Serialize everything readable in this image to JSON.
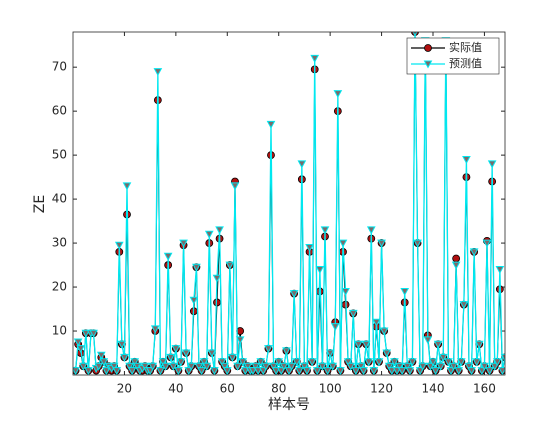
{
  "chart_data": {
    "type": "line",
    "xlabel": "样本号",
    "ylabel": "ZE",
    "x": [
      1,
      2,
      3,
      4,
      5,
      6,
      7,
      8,
      9,
      10,
      11,
      12,
      13,
      14,
      15,
      16,
      17,
      18,
      19,
      20,
      21,
      22,
      23,
      24,
      25,
      26,
      27,
      28,
      29,
      30,
      31,
      32,
      33,
      34,
      35,
      36,
      37,
      38,
      39,
      40,
      41,
      42,
      43,
      44,
      45,
      46,
      47,
      48,
      49,
      50,
      51,
      52,
      53,
      54,
      55,
      56,
      57,
      58,
      59,
      60,
      61,
      62,
      63,
      64,
      65,
      66,
      67,
      68,
      69,
      70,
      71,
      72,
      73,
      74,
      75,
      76,
      77,
      78,
      79,
      80,
      81,
      82,
      83,
      84,
      85,
      86,
      87,
      88,
      89,
      90,
      91,
      92,
      93,
      94,
      95,
      96,
      97,
      98,
      99,
      100,
      101,
      102,
      103,
      104,
      105,
      106,
      107,
      108,
      109,
      110,
      111,
      112,
      113,
      114,
      115,
      116,
      117,
      118,
      119,
      120,
      121,
      122,
      123,
      124,
      125,
      126,
      127,
      128,
      129,
      130,
      131,
      132,
      133,
      134,
      135,
      136,
      137,
      138,
      139,
      140,
      141,
      142,
      143,
      144,
      145,
      146,
      147,
      148,
      149,
      150,
      151,
      152,
      153,
      154,
      155,
      156,
      157,
      158,
      159,
      160,
      161,
      162,
      163,
      164,
      165,
      166,
      167,
      168
    ],
    "series": [
      {
        "name": "实际值",
        "color": "#000000",
        "marker": "circle",
        "marker_color": "#b01010",
        "values": [
          1,
          7,
          5,
          2,
          9.5,
          1,
          9.5,
          9.5,
          1,
          2,
          4,
          3,
          1,
          2,
          1,
          2,
          1,
          28,
          7,
          4,
          36.5,
          2,
          1,
          3,
          2,
          1,
          1,
          2,
          1,
          1,
          2,
          10,
          62.5,
          1,
          3,
          2,
          25,
          4,
          2,
          6,
          1,
          3,
          29.5,
          5,
          1,
          2,
          14.5,
          24.5,
          2,
          1,
          3,
          2,
          30,
          5,
          1,
          16.5,
          31,
          3,
          2,
          1,
          25,
          4,
          44,
          2,
          10,
          3,
          1,
          2,
          1,
          1,
          2,
          1,
          3,
          1,
          2,
          6,
          50,
          2,
          1,
          3,
          1,
          2,
          5.5,
          1,
          2,
          18.5,
          3,
          1,
          44.5,
          2,
          1,
          28,
          3,
          69.5,
          1,
          19,
          2,
          31.5,
          1,
          5,
          2,
          12,
          60,
          1,
          28,
          16,
          3,
          2,
          14,
          1,
          7,
          2,
          1,
          7,
          3,
          31,
          1,
          11,
          3,
          30,
          10,
          5,
          2,
          1,
          3,
          1,
          2,
          1,
          16.5,
          2,
          1,
          3,
          78,
          30,
          1,
          2,
          75,
          9,
          2,
          3,
          1,
          7,
          2,
          4,
          75,
          3,
          1,
          2,
          26.5,
          1,
          3,
          16,
          45,
          2,
          1,
          28,
          3,
          7,
          1,
          2,
          30.5,
          1,
          44,
          2,
          3,
          19.5,
          1,
          4
        ]
      },
      {
        "name": "预测值",
        "color": "#00e8f0",
        "marker": "triangle-down",
        "marker_color": "#7a6a6a",
        "values": [
          1,
          7.5,
          6,
          2,
          9.5,
          1,
          9.5,
          9.5,
          1.5,
          2,
          4.5,
          3,
          1,
          2,
          1.5,
          2,
          1,
          29.5,
          7,
          4,
          43,
          2,
          1,
          3,
          2,
          1,
          1.5,
          2,
          1,
          1,
          2,
          10.5,
          69,
          1,
          3,
          2,
          27,
          4,
          2,
          6,
          1,
          3,
          30,
          5,
          1,
          2,
          17,
          24.5,
          2,
          1,
          3,
          2,
          32,
          5,
          1,
          22,
          33,
          3,
          2,
          1,
          25,
          4,
          43,
          2,
          8,
          3,
          1,
          2,
          1,
          1,
          2,
          1,
          3,
          1,
          2,
          6,
          57,
          2,
          1,
          3,
          1,
          2,
          5.5,
          1,
          2,
          18.5,
          3,
          1,
          48,
          2,
          1,
          29,
          3,
          72,
          1,
          24,
          2,
          33,
          1,
          5,
          2,
          11,
          64,
          1,
          30,
          19,
          3,
          2,
          14,
          1,
          7,
          2,
          1,
          7,
          3,
          33,
          1,
          12,
          3,
          30,
          10,
          5,
          2,
          1,
          3,
          1,
          2,
          1,
          19,
          2,
          1,
          3,
          78,
          30,
          1,
          2,
          76,
          8,
          2,
          3,
          1,
          7,
          2,
          4,
          76,
          3,
          1,
          2,
          25,
          1,
          3,
          16,
          49,
          2,
          1,
          28,
          3,
          7,
          1,
          2,
          30,
          1,
          48,
          2,
          3,
          24,
          1,
          4
        ]
      }
    ],
    "xlim": [
      0,
      168
    ],
    "ylim": [
      0,
      78
    ],
    "xticks": [
      20,
      40,
      60,
      80,
      100,
      120,
      140,
      160
    ],
    "yticks": [
      10,
      20,
      30,
      40,
      50,
      60,
      70
    ],
    "legend": "upper right"
  }
}
